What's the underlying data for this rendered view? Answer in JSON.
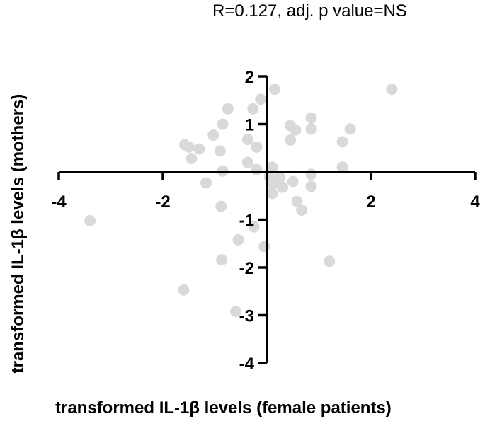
{
  "chart_data": {
    "type": "scatter",
    "title": "",
    "annotation": "R=0.127, adj. p value=NS",
    "xlabel": "transformed IL-1β levels (female patients)",
    "ylabel": "transformed IL-1β levels (mothers)",
    "xlim": [
      -4,
      4
    ],
    "ylim": [
      -4,
      2
    ],
    "xticks": [
      -4,
      -2,
      2,
      4
    ],
    "yticks": [
      2,
      1,
      -1,
      -2,
      -3,
      -4
    ],
    "xtick_labels": [
      "-4",
      "-2",
      "2",
      "4"
    ],
    "ytick_labels": [
      "2",
      "1",
      "-1",
      "-2",
      "-3",
      "-4"
    ],
    "grid": false,
    "axes_through_origin": true,
    "point_color": "#d9d9d9",
    "axis_color": "#000000",
    "points": [
      {
        "x": -3.4,
        "y": -1.02
      },
      {
        "x": -1.6,
        "y": -2.47
      },
      {
        "x": -1.58,
        "y": 0.57
      },
      {
        "x": -1.5,
        "y": 0.52
      },
      {
        "x": -1.45,
        "y": 0.28
      },
      {
        "x": -1.3,
        "y": 0.48
      },
      {
        "x": -1.03,
        "y": 0.77
      },
      {
        "x": -0.9,
        "y": 0.44
      },
      {
        "x": -0.85,
        "y": 1.0
      },
      {
        "x": -0.75,
        "y": 1.32
      },
      {
        "x": -0.85,
        "y": 0.02
      },
      {
        "x": -0.88,
        "y": -0.72
      },
      {
        "x": -0.87,
        "y": -1.84
      },
      {
        "x": -1.17,
        "y": -0.23
      },
      {
        "x": -0.6,
        "y": -2.92
      },
      {
        "x": -0.55,
        "y": -1.42
      },
      {
        "x": -0.37,
        "y": 0.68
      },
      {
        "x": -0.37,
        "y": 0.2
      },
      {
        "x": -0.27,
        "y": 1.32
      },
      {
        "x": -0.25,
        "y": -1.15
      },
      {
        "x": -0.2,
        "y": 0.52
      },
      {
        "x": -0.2,
        "y": 0.05
      },
      {
        "x": -0.12,
        "y": 1.52
      },
      {
        "x": -0.05,
        "y": -1.56
      },
      {
        "x": 0.05,
        "y": -0.1
      },
      {
        "x": 0.1,
        "y": 0.1
      },
      {
        "x": 0.12,
        "y": -0.25
      },
      {
        "x": 0.1,
        "y": -0.45
      },
      {
        "x": 0.15,
        "y": 1.73
      },
      {
        "x": 0.2,
        "y": -0.23
      },
      {
        "x": 0.25,
        "y": -0.12
      },
      {
        "x": 0.3,
        "y": -0.32
      },
      {
        "x": 0.45,
        "y": 0.97
      },
      {
        "x": 0.45,
        "y": 0.67
      },
      {
        "x": 0.5,
        "y": -0.2
      },
      {
        "x": 0.55,
        "y": 0.88
      },
      {
        "x": 0.58,
        "y": -0.62
      },
      {
        "x": 0.67,
        "y": -0.8
      },
      {
        "x": 0.85,
        "y": 1.13
      },
      {
        "x": 0.85,
        "y": 0.9
      },
      {
        "x": 0.85,
        "y": -0.05
      },
      {
        "x": 0.85,
        "y": -0.3
      },
      {
        "x": 1.2,
        "y": -1.87
      },
      {
        "x": 1.45,
        "y": 0.63
      },
      {
        "x": 1.45,
        "y": 0.1
      },
      {
        "x": 1.6,
        "y": 0.9
      },
      {
        "x": 2.4,
        "y": 1.73
      }
    ]
  }
}
